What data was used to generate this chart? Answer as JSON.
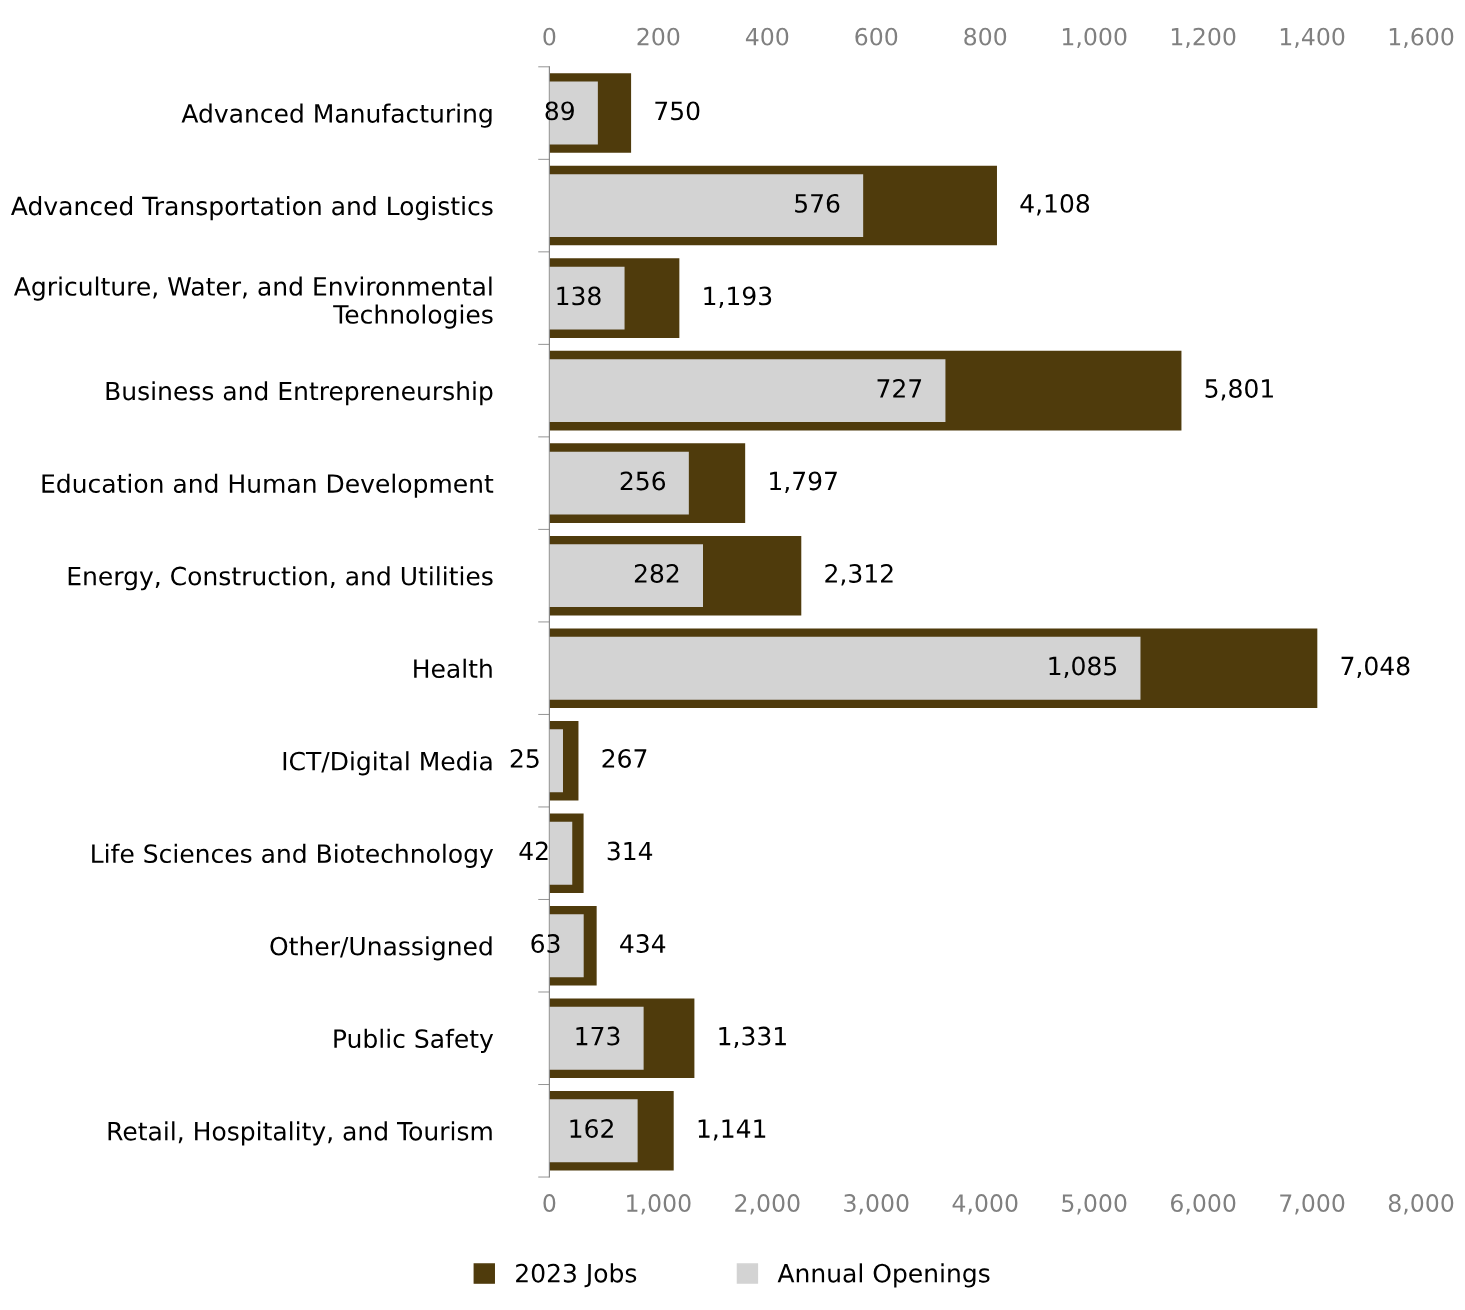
{
  "chart_data": {
    "type": "bar",
    "orientation": "horizontal",
    "categories": [
      "Advanced Manufacturing",
      "Advanced Transportation and Logistics",
      "Agriculture, Water, and Environmental Technologies",
      "Business and Entrepreneurship",
      "Education and Human Development",
      "Energy, Construction, and Utilities",
      "Health",
      "ICT/Digital Media",
      "Life Sciences and Biotechnology",
      "Other/Unassigned",
      "Public Safety",
      "Retail, Hospitality, and Tourism"
    ],
    "series": [
      {
        "name": "2023 Jobs",
        "color": "#4f3b0c",
        "values": [
          750,
          4108,
          1193,
          5801,
          1797,
          2312,
          7048,
          267,
          314,
          434,
          1331,
          1141
        ],
        "value_labels": [
          "750",
          "4,108",
          "1,193",
          "5,801",
          "1,797",
          "2,312",
          "7,048",
          "267",
          "314",
          "434",
          "1,331",
          "1,141"
        ]
      },
      {
        "name": "Annual Openings",
        "color": "#d3d3d3",
        "axis": "x2",
        "values": [
          89,
          576,
          138,
          727,
          256,
          282,
          1085,
          25,
          42,
          63,
          173,
          162
        ],
        "value_labels": [
          "89",
          "576",
          "138",
          "727",
          "256",
          "282",
          "1,085",
          "25",
          "42",
          "63",
          "173",
          "162"
        ]
      }
    ],
    "xlim": [
      0,
      8000
    ],
    "xticks": [
      0,
      {
        "value": 1000,
        "label": "1,000"
      },
      {
        "value": 2000,
        "label": "2,000"
      },
      {
        "value": 3000,
        "label": "3,000"
      },
      {
        "value": 4000,
        "label": "4,000"
      },
      {
        "value": 5000,
        "label": "5,000"
      },
      {
        "value": 6000,
        "label": "6,000"
      },
      {
        "value": 7000,
        "label": "7,000"
      },
      {
        "value": 8000,
        "label": "8,000"
      }
    ],
    "x2lim": [
      0,
      1600
    ],
    "x2ticks": [
      0,
      200,
      400,
      600,
      800,
      {
        "value": 1000,
        "label": "1,000"
      },
      {
        "value": 1200,
        "label": "1,200"
      },
      {
        "value": 1400,
        "label": "1,400"
      },
      {
        "value": 1600,
        "label": "1,600"
      }
    ],
    "legend": "bottom"
  }
}
